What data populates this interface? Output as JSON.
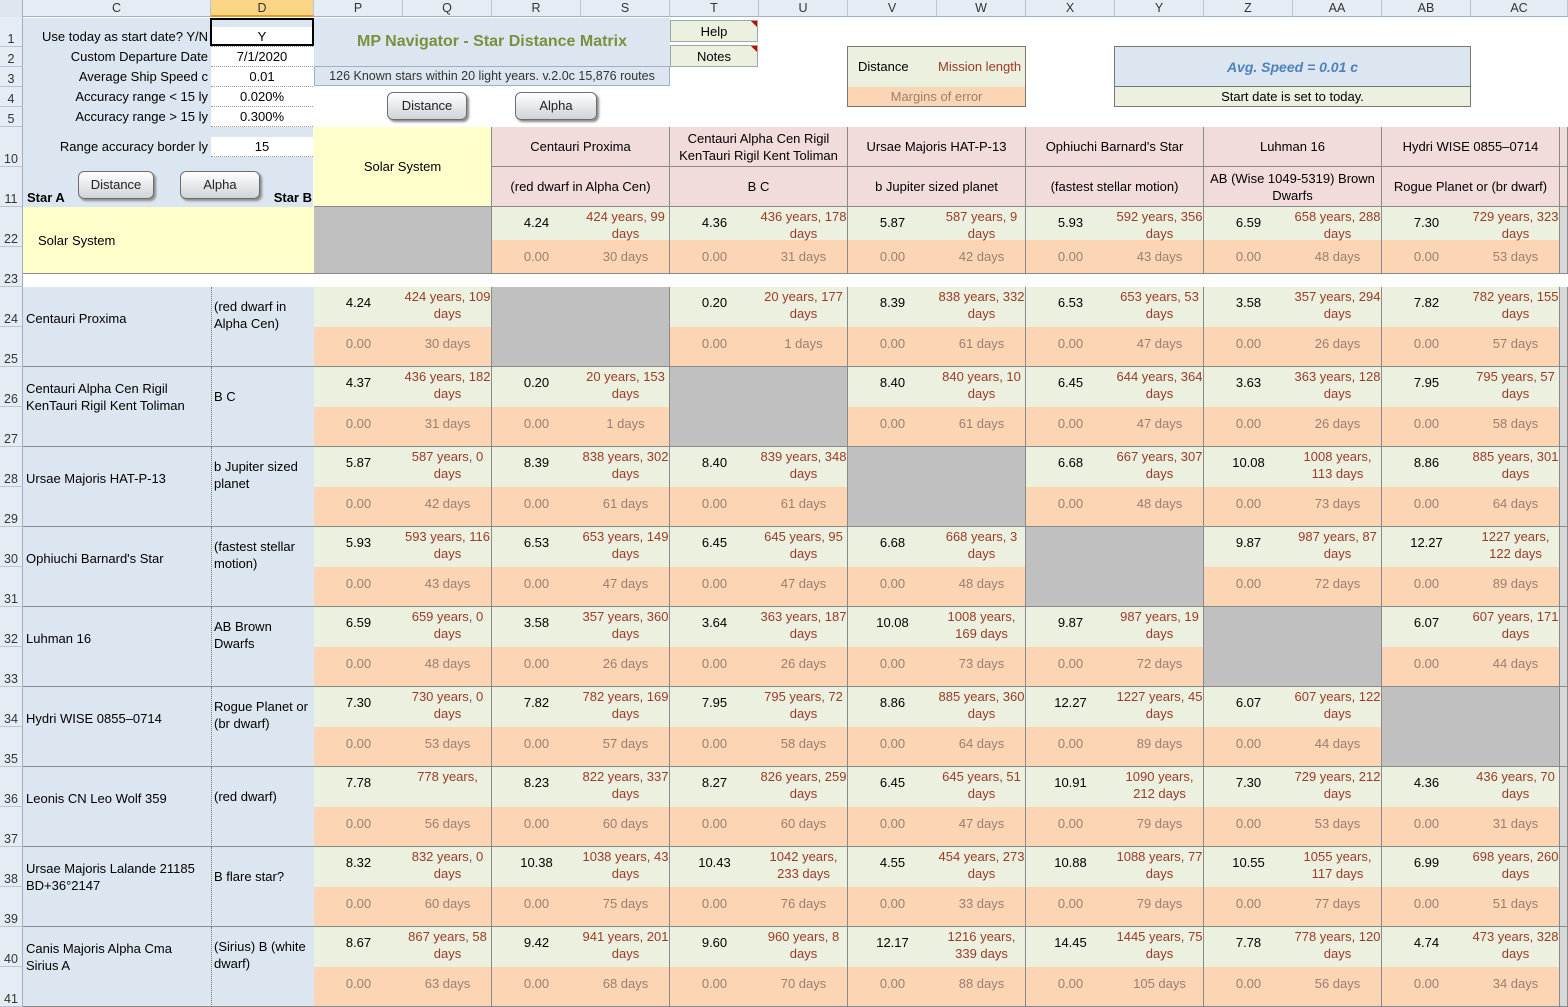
{
  "columns": {
    "letters": [
      "C",
      "D",
      "P",
      "Q",
      "R",
      "S",
      "T",
      "U",
      "V",
      "W",
      "X",
      "Y",
      "Z",
      "AA",
      "AB",
      "AC"
    ],
    "selected": "D"
  },
  "rows": {
    "cfg": [
      "1",
      "2",
      "3",
      "4",
      "5",
      "10",
      "11"
    ],
    "matrix": [
      "22",
      "23",
      "24",
      "25",
      "26",
      "27",
      "28",
      "29",
      "30",
      "31",
      "32",
      "33",
      "34",
      "35",
      "36",
      "37",
      "38",
      "39",
      "40",
      "41"
    ]
  },
  "config": {
    "labels": [
      "Use today as start date? Y/N",
      "Custom Departure Date",
      "Average Ship Speed c",
      "Accuracy range < 15 ly",
      "Accuracy range > 15 ly",
      "Range accuracy border ly"
    ],
    "values": [
      "Y",
      "7/1/2020",
      "0.01",
      "0.020%",
      "0.300%",
      "15"
    ],
    "star_a": "Star A",
    "star_b": "Star B"
  },
  "buttons": {
    "distance": "Distance",
    "alpha": "Alpha",
    "help": "Help",
    "notes": "Notes"
  },
  "title": {
    "main": "MP Navigator - Star Distance Matrix",
    "sub": "126 Known stars within 20 light years. v.2.0c 15,876 routes"
  },
  "legend": {
    "distance": "Distance",
    "mission": "Mission length",
    "margins": "Margins of error"
  },
  "speed": {
    "avg": "Avg. Speed = 0.01 c",
    "start": "Start date is set to today."
  },
  "colors": {
    "rowname": "#dce6f1",
    "header": "#f2dcdb",
    "solar": "#ffffcc",
    "distance": "#ebf1de",
    "margin": "#fcd5b4",
    "diag": "#c0c0c0",
    "title": "#76923c",
    "speed": "#4f81bd"
  },
  "col_stars": [
    {
      "name": "Solar System",
      "sub": ""
    },
    {
      "name": "Centauri Proxima",
      "sub": "(red dwarf in Alpha Cen)"
    },
    {
      "name": "Centauri Alpha Cen Rigil KenTauri Rigil Kent Toliman",
      "sub": "B C"
    },
    {
      "name": "Ursae Majoris HAT-P-13",
      "sub": "b Jupiter sized planet"
    },
    {
      "name": "Ophiuchi Barnard's Star",
      "sub": "(fastest stellar motion)"
    },
    {
      "name": "Luhman 16",
      "sub": "AB (Wise 1049-5319) Brown Dwarfs"
    },
    {
      "name": "Hydri WISE 0855–0714",
      "sub": "Rogue Planet or (br dwarf)"
    },
    {
      "name": "",
      "sub": ""
    }
  ],
  "matrix": [
    {
      "name": "Solar System",
      "desc": "",
      "cells": [
        null,
        {
          "d": "4.24",
          "t": "424 years, 99 days",
          "e": "0.00",
          "m": "30 days"
        },
        {
          "d": "4.36",
          "t": "436 years, 178 days",
          "e": "0.00",
          "m": "31 days"
        },
        {
          "d": "5.87",
          "t": "587 years, 9 days",
          "e": "0.00",
          "m": "42 days"
        },
        {
          "d": "5.93",
          "t": "592 years, 356 days",
          "e": "0.00",
          "m": "43 days"
        },
        {
          "d": "6.59",
          "t": "658 years, 288 days",
          "e": "0.00",
          "m": "48 days"
        },
        {
          "d": "7.30",
          "t": "729 years, 323 days",
          "e": "0.00",
          "m": "53 days"
        }
      ]
    },
    {
      "name": "Centauri Proxima",
      "desc": "(red dwarf in Alpha Cen)",
      "cells": [
        {
          "d": "4.24",
          "t": "424 years, 109 days",
          "e": "0.00",
          "m": "30 days"
        },
        null,
        {
          "d": "0.20",
          "t": "20 years, 177 days",
          "e": "0.00",
          "m": "1 days"
        },
        {
          "d": "8.39",
          "t": "838 years, 332 days",
          "e": "0.00",
          "m": "61 days"
        },
        {
          "d": "6.53",
          "t": "653 years, 53 days",
          "e": "0.00",
          "m": "47 days"
        },
        {
          "d": "3.58",
          "t": "357 years, 294 days",
          "e": "0.00",
          "m": "26 days"
        },
        {
          "d": "7.82",
          "t": "782 years, 155 days",
          "e": "0.00",
          "m": "57 days"
        }
      ]
    },
    {
      "name": "Centauri Alpha Cen Rigil KenTauri Rigil Kent Toliman",
      "desc": "B C",
      "cells": [
        {
          "d": "4.37",
          "t": "436 years, 182 days",
          "e": "0.00",
          "m": "31 days"
        },
        {
          "d": "0.20",
          "t": "20 years, 153 days",
          "e": "0.00",
          "m": "1 days"
        },
        null,
        {
          "d": "8.40",
          "t": "840 years, 10 days",
          "e": "0.00",
          "m": "61 days"
        },
        {
          "d": "6.45",
          "t": "644 years, 364 days",
          "e": "0.00",
          "m": "47 days"
        },
        {
          "d": "3.63",
          "t": "363 years, 128 days",
          "e": "0.00",
          "m": "26 days"
        },
        {
          "d": "7.95",
          "t": "795 years, 57 days",
          "e": "0.00",
          "m": "58 days"
        }
      ]
    },
    {
      "name": "Ursae Majoris HAT-P-13",
      "desc": "b Jupiter sized planet",
      "cells": [
        {
          "d": "5.87",
          "t": "587 years, 0 days",
          "e": "0.00",
          "m": "42 days"
        },
        {
          "d": "8.39",
          "t": "838 years, 302 days",
          "e": "0.00",
          "m": "61 days"
        },
        {
          "d": "8.40",
          "t": "839 years, 348 days",
          "e": "0.00",
          "m": "61 days"
        },
        null,
        {
          "d": "6.68",
          "t": "667 years, 307 days",
          "e": "0.00",
          "m": "48 days"
        },
        {
          "d": "10.08",
          "t": "1008 years, 113 days",
          "e": "0.00",
          "m": "73 days"
        },
        {
          "d": "8.86",
          "t": "885 years, 301 days",
          "e": "0.00",
          "m": "64 days"
        }
      ]
    },
    {
      "name": "Ophiuchi Barnard's Star",
      "desc": "(fastest stellar motion)",
      "cells": [
        {
          "d": "5.93",
          "t": "593 years, 116 days",
          "e": "0.00",
          "m": "43 days"
        },
        {
          "d": "6.53",
          "t": "653 years, 149 days",
          "e": "0.00",
          "m": "47 days"
        },
        {
          "d": "6.45",
          "t": "645 years, 95 days",
          "e": "0.00",
          "m": "47 days"
        },
        {
          "d": "6.68",
          "t": "668 years, 3 days",
          "e": "0.00",
          "m": "48 days"
        },
        null,
        {
          "d": "9.87",
          "t": "987 years, 87 days",
          "e": "0.00",
          "m": "72 days"
        },
        {
          "d": "12.27",
          "t": "1227 years, 122 days",
          "e": "0.00",
          "m": "89 days"
        }
      ]
    },
    {
      "name": "Luhman 16",
      "desc": "AB Brown Dwarfs",
      "cells": [
        {
          "d": "6.59",
          "t": "659 years, 0 days",
          "e": "0.00",
          "m": "48 days"
        },
        {
          "d": "3.58",
          "t": "357 years, 360 days",
          "e": "0.00",
          "m": "26 days"
        },
        {
          "d": "3.64",
          "t": "363 years, 187 days",
          "e": "0.00",
          "m": "26 days"
        },
        {
          "d": "10.08",
          "t": "1008 years, 169 days",
          "e": "0.00",
          "m": "73 days"
        },
        {
          "d": "9.87",
          "t": "987 years, 19 days",
          "e": "0.00",
          "m": "72 days"
        },
        null,
        {
          "d": "6.07",
          "t": "607 years, 171 days",
          "e": "0.00",
          "m": "44 days"
        }
      ]
    },
    {
      "name": "Hydri WISE 0855–0714",
      "desc": "Rogue Planet or (br dwarf)",
      "cells": [
        {
          "d": "7.30",
          "t": "730 years, 0 days",
          "e": "0.00",
          "m": "53 days"
        },
        {
          "d": "7.82",
          "t": "782 years, 169 days",
          "e": "0.00",
          "m": "57 days"
        },
        {
          "d": "7.95",
          "t": "795 years, 72 days",
          "e": "0.00",
          "m": "58 days"
        },
        {
          "d": "8.86",
          "t": "885 years, 360 days",
          "e": "0.00",
          "m": "64 days"
        },
        {
          "d": "12.27",
          "t": "1227 years, 45 days",
          "e": "0.00",
          "m": "89 days"
        },
        {
          "d": "6.07",
          "t": "607 years, 122 days",
          "e": "0.00",
          "m": "44 days"
        },
        null
      ]
    },
    {
      "name": "Leonis CN Leo Wolf 359",
      "desc": "(red dwarf)",
      "cells": [
        {
          "d": "7.78",
          "t": "778 years,",
          "e": "0.00",
          "m": "56 days"
        },
        {
          "d": "8.23",
          "t": "822 years, 337 days",
          "e": "0.00",
          "m": "60 days"
        },
        {
          "d": "8.27",
          "t": "826 years, 259 days",
          "e": "0.00",
          "m": "60 days"
        },
        {
          "d": "6.45",
          "t": "645 years, 51 days",
          "e": "0.00",
          "m": "47 days"
        },
        {
          "d": "10.91",
          "t": "1090 years, 212 days",
          "e": "0.00",
          "m": "79 days"
        },
        {
          "d": "7.30",
          "t": "729 years, 212 days",
          "e": "0.00",
          "m": "53 days"
        },
        {
          "d": "4.36",
          "t": "436 years, 70 days",
          "e": "0.00",
          "m": "31 days"
        }
      ]
    },
    {
      "name": "Ursae Majoris Lalande 21185 BD+36°2147",
      "desc": "B flare star?",
      "cells": [
        {
          "d": "8.32",
          "t": "832 years, 0 days",
          "e": "0.00",
          "m": "60 days"
        },
        {
          "d": "10.38",
          "t": "1038 years, 43 days",
          "e": "0.00",
          "m": "75 days"
        },
        {
          "d": "10.43",
          "t": "1042 years, 233 days",
          "e": "0.00",
          "m": "76 days"
        },
        {
          "d": "4.55",
          "t": "454 years, 273 days",
          "e": "0.00",
          "m": "33 days"
        },
        {
          "d": "10.88",
          "t": "1088 years, 77 days",
          "e": "0.00",
          "m": "79 days"
        },
        {
          "d": "10.55",
          "t": "1055 years, 117 days",
          "e": "0.00",
          "m": "77 days"
        },
        {
          "d": "6.99",
          "t": "698 years, 260 days",
          "e": "0.00",
          "m": "51 days"
        }
      ]
    },
    {
      "name": "Canis Majoris Alpha Cma Sirius A",
      "desc": "(Sirius) B (white dwarf)",
      "cells": [
        {
          "d": "8.67",
          "t": "867 years, 58 days",
          "e": "0.00",
          "m": "63 days"
        },
        {
          "d": "9.42",
          "t": "941 years, 201 days",
          "e": "0.00",
          "m": "68 days"
        },
        {
          "d": "9.60",
          "t": "960 years, 8 days",
          "e": "0.00",
          "m": "70 days"
        },
        {
          "d": "12.17",
          "t": "1216 years, 339 days",
          "e": "0.00",
          "m": "88 days"
        },
        {
          "d": "14.45",
          "t": "1445 years, 75 days",
          "e": "0.00",
          "m": "105 days"
        },
        {
          "d": "7.78",
          "t": "778 years, 120 days",
          "e": "0.00",
          "m": "56 days"
        },
        {
          "d": "4.74",
          "t": "473 years, 328 days",
          "e": "0.00",
          "m": "34 days"
        }
      ]
    }
  ]
}
